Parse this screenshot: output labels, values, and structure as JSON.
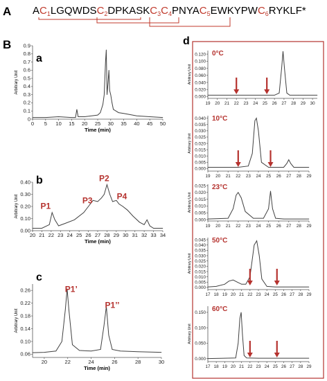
{
  "panel_labels": {
    "A": "A",
    "B": "B",
    "a": "a",
    "b": "b",
    "c": "c",
    "d": "d"
  },
  "sequence": {
    "segments": [
      "A",
      "C",
      "1",
      "LGQWDS",
      "C",
      "2",
      "DPKASK",
      "C",
      "3",
      "C",
      "4",
      "PNYA",
      "C",
      "5",
      "EWKYPW",
      "C",
      "6",
      "RYKLF",
      "*"
    ],
    "highlight_color": "#c0392b"
  },
  "colors": {
    "accent": "#b5322e",
    "trace": "#404040",
    "axis": "#555555"
  },
  "chart_data": [
    {
      "id": "a",
      "type": "line",
      "xlabel": "Time (min)",
      "ylabel": "Arbitrary Unit",
      "xlim": [
        0,
        50
      ],
      "ylim": [
        0,
        0.9
      ],
      "xticks": [
        0,
        5,
        10,
        15,
        20,
        25,
        30,
        35,
        40,
        45,
        50
      ],
      "yticks": [
        0,
        0.1,
        0.2,
        0.3,
        0.4,
        0.5,
        0.6,
        0.7,
        0.8,
        0.9
      ],
      "ytick_labels": [
        "0",
        "0.1",
        "0.2",
        "0.3",
        "0.4",
        "0.5",
        "0.6",
        "0.7",
        "0.8",
        "0.9"
      ],
      "x": [
        0,
        5,
        10,
        15,
        16.5,
        17,
        17.5,
        20,
        25,
        26,
        27,
        27.5,
        28,
        28.3,
        28.6,
        29,
        29.3,
        29.6,
        30,
        30.5,
        31,
        32,
        33,
        35,
        40,
        45,
        50
      ],
      "y": [
        0.02,
        0.02,
        0.03,
        0.02,
        0.02,
        0.12,
        0.03,
        0.03,
        0.05,
        0.08,
        0.18,
        0.3,
        0.7,
        0.85,
        0.3,
        0.45,
        0.6,
        0.35,
        0.3,
        0.2,
        0.12,
        0.1,
        0.08,
        0.07,
        0.04,
        0.03,
        0.02
      ],
      "annotations": []
    },
    {
      "id": "b",
      "type": "line",
      "xlabel": "Time (min)",
      "ylabel": "Arbitrary Unit",
      "xlim": [
        20,
        34
      ],
      "ylim": [
        0,
        0.4
      ],
      "xticks": [
        20,
        21,
        22,
        23,
        24,
        25,
        26,
        27,
        28,
        29,
        30,
        31,
        32,
        33,
        34
      ],
      "yticks": [
        0,
        0.1,
        0.2,
        0.3,
        0.4
      ],
      "ytick_labels": [
        "0.00",
        "0.10",
        "0.20",
        "0.30",
        "0.40"
      ],
      "x": [
        20,
        21,
        21.8,
        22.1,
        22.4,
        22.8,
        23.5,
        24.5,
        25.5,
        26,
        26.5,
        27,
        27.4,
        27.7,
        28,
        28.3,
        28.6,
        29,
        29.3,
        29.7,
        30.2,
        30.8,
        31.5,
        32,
        32.3,
        32.6,
        33,
        34
      ],
      "y": [
        0.02,
        0.02,
        0.05,
        0.15,
        0.09,
        0.04,
        0.06,
        0.09,
        0.15,
        0.2,
        0.25,
        0.24,
        0.27,
        0.3,
        0.38,
        0.3,
        0.24,
        0.25,
        0.22,
        0.2,
        0.17,
        0.12,
        0.07,
        0.05,
        0.09,
        0.04,
        0.02,
        0.02
      ],
      "annotations": [
        {
          "text": "P1",
          "x": 21.4,
          "y": 0.18
        },
        {
          "text": "P3",
          "x": 25.9,
          "y": 0.225
        },
        {
          "text": "P2",
          "x": 27.7,
          "y": 0.41
        },
        {
          "text": "P4",
          "x": 29.6,
          "y": 0.26
        }
      ]
    },
    {
      "id": "c",
      "type": "line",
      "xlabel": "Time (min)",
      "ylabel": "Arbitrary Unit",
      "xlim": [
        19,
        30
      ],
      "ylim": [
        0.05,
        0.28
      ],
      "xticks": [
        20,
        22,
        24,
        26,
        28,
        30
      ],
      "yticks": [
        0.06,
        0.1,
        0.14,
        0.18,
        0.22,
        0.26
      ],
      "ytick_labels": [
        "0.06",
        "0.10",
        "0.14",
        "0.18",
        "0.22",
        "0.26"
      ],
      "x": [
        19,
        20,
        21,
        21.5,
        21.8,
        21.95,
        22.1,
        22.4,
        23,
        24,
        24.8,
        25.1,
        25.3,
        25.5,
        25.8,
        26.5,
        28,
        30
      ],
      "y": [
        0.065,
        0.066,
        0.07,
        0.1,
        0.2,
        0.265,
        0.2,
        0.09,
        0.072,
        0.07,
        0.075,
        0.15,
        0.21,
        0.12,
        0.075,
        0.07,
        0.068,
        0.066
      ],
      "annotations": [
        {
          "text": "P1’",
          "x": 22.3,
          "y": 0.255
        },
        {
          "text": "P1’’",
          "x": 25.8,
          "y": 0.205
        }
      ]
    },
    {
      "id": "d0",
      "type": "line",
      "temperature": "0°C",
      "ylabel": "Arbitrary Unit",
      "xlim": [
        19,
        30.5
      ],
      "ylim": [
        -0.005,
        0.13
      ],
      "xticks": [
        19,
        20,
        21,
        22,
        23,
        24,
        25,
        26,
        27,
        28,
        29,
        30
      ],
      "yticks": [
        0,
        0.02,
        0.04,
        0.06,
        0.08,
        0.1,
        0.12
      ],
      "ytick_labels": [
        "0.000",
        "0.020",
        "0.040",
        "0.060",
        "0.080",
        "0.100",
        "0.120"
      ],
      "x": [
        19,
        22,
        25,
        26,
        26.5,
        26.75,
        26.9,
        27.05,
        27.3,
        27.6,
        28.5,
        30.5
      ],
      "y": [
        0.004,
        0.004,
        0.004,
        0.004,
        0.01,
        0.08,
        0.128,
        0.08,
        0.01,
        0.004,
        0.004,
        0.004
      ],
      "arrows_x": [
        22,
        25.2
      ]
    },
    {
      "id": "d10",
      "type": "line",
      "temperature": "10°C",
      "ylabel": "Arbitrary Unit",
      "xlim": [
        19,
        29
      ],
      "ylim": [
        -0.002,
        0.042
      ],
      "xticks": [
        19,
        20,
        21,
        22,
        23,
        24,
        25,
        26,
        27,
        28,
        29
      ],
      "yticks": [
        0,
        0.005,
        0.01,
        0.015,
        0.02,
        0.025,
        0.03,
        0.035,
        0.04
      ],
      "ytick_labels": [
        "0.000",
        "0.005",
        "0.010",
        "0.015",
        "0.020",
        "0.025",
        "0.030",
        "0.035",
        "0.040"
      ],
      "x": [
        19,
        22,
        23,
        23.4,
        23.65,
        23.8,
        24,
        24.3,
        25,
        26.5,
        26.8,
        27,
        27.2,
        27.5,
        29
      ],
      "y": [
        0.001,
        0.001,
        0.002,
        0.012,
        0.038,
        0.04,
        0.03,
        0.005,
        0.001,
        0.001,
        0.004,
        0.007,
        0.004,
        0.001,
        0.001
      ],
      "arrows_x": [
        22,
        25.2
      ]
    },
    {
      "id": "d23",
      "type": "line",
      "temperature": "23°C",
      "ylabel": "Arbitrary Unit",
      "xlim": [
        19,
        29
      ],
      "ylim": [
        -0.001,
        0.026
      ],
      "xticks": [
        19,
        20,
        21,
        22,
        23,
        24,
        25,
        26,
        27,
        28,
        29
      ],
      "yticks": [
        0,
        0.005,
        0.01,
        0.015,
        0.02,
        0.025
      ],
      "ytick_labels": [
        "0.000",
        "0.005",
        "0.010",
        "0.015",
        "0.020",
        "0.025"
      ],
      "x": [
        19,
        21,
        21.5,
        21.8,
        22,
        22.3,
        22.7,
        23.5,
        24.5,
        25,
        25.2,
        25.4,
        25.7,
        26.5,
        29
      ],
      "y": [
        0.0005,
        0.001,
        0.008,
        0.018,
        0.02,
        0.016,
        0.006,
        0.001,
        0.001,
        0.008,
        0.021,
        0.008,
        0.001,
        0.0005,
        0.0005
      ],
      "arrows_x": []
    },
    {
      "id": "d50",
      "type": "line",
      "temperature": "50°C",
      "ylabel": "Arbitrary Unit",
      "xlim": [
        17,
        29
      ],
      "ylim": [
        -0.002,
        0.047
      ],
      "xticks": [
        17,
        18,
        19,
        20,
        21,
        22,
        23,
        24,
        25,
        26,
        27,
        28,
        29
      ],
      "yticks": [
        0,
        0.005,
        0.01,
        0.015,
        0.02,
        0.025,
        0.03,
        0.035,
        0.04,
        0.045
      ],
      "ytick_labels": [
        "0.000",
        "0.005",
        "0.010",
        "0.015",
        "0.020",
        "0.025",
        "0.030",
        "0.035",
        "0.040",
        "0.045"
      ],
      "x": [
        17,
        18,
        19,
        19.5,
        20,
        20.5,
        21,
        21.5,
        22,
        22.5,
        22.8,
        23.1,
        23.4,
        24,
        25,
        29
      ],
      "y": [
        0.0005,
        0.001,
        0.003,
        0.006,
        0.007,
        0.005,
        0.003,
        0.003,
        0.01,
        0.04,
        0.044,
        0.03,
        0.008,
        0.001,
        0.0005,
        0.0005
      ],
      "arrows_x": [
        22,
        25.2
      ]
    },
    {
      "id": "d60",
      "type": "line",
      "temperature": "60°C",
      "ylabel": "Arbitrary Unit",
      "xlim": [
        17,
        29
      ],
      "ylim": [
        -0.01,
        0.17
      ],
      "xticks": [
        17,
        18,
        19,
        20,
        21,
        22,
        23,
        24,
        25,
        26,
        27,
        28,
        29
      ],
      "yticks": [
        0,
        0.05,
        0.1,
        0.15
      ],
      "ytick_labels": [
        "0.000",
        "0.050",
        "0.100",
        "0.150"
      ],
      "x": [
        17,
        19,
        20.3,
        20.6,
        20.8,
        20.95,
        21.1,
        21.3,
        21.6,
        23,
        29
      ],
      "y": [
        0,
        0.001,
        0.002,
        0.05,
        0.13,
        0.15,
        0.08,
        0.01,
        0.002,
        0.001,
        0.001
      ],
      "arrows_x": [
        22,
        25.2
      ]
    }
  ]
}
